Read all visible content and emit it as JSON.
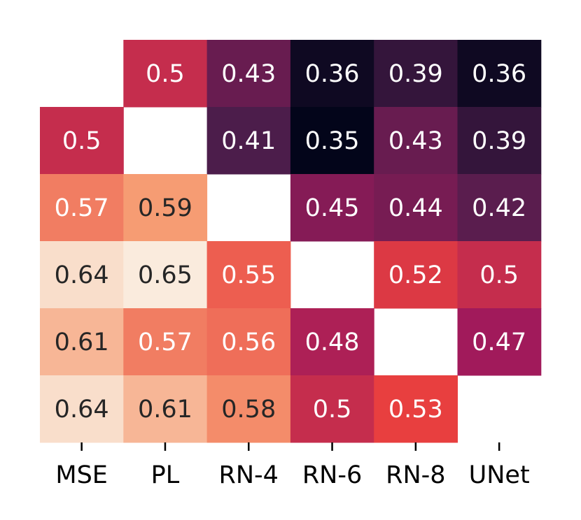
{
  "chart_data": {
    "type": "heatmap",
    "categories": [
      "MSE",
      "PL",
      "RN-4",
      "RN-6",
      "RN-8",
      "UNet"
    ],
    "values": [
      [
        null,
        0.5,
        0.43,
        0.36,
        0.39,
        0.36
      ],
      [
        0.5,
        null,
        0.41,
        0.35,
        0.43,
        0.39
      ],
      [
        0.57,
        0.59,
        null,
        0.45,
        0.44,
        0.42
      ],
      [
        0.64,
        0.65,
        0.55,
        null,
        0.52,
        0.5
      ],
      [
        0.61,
        0.57,
        0.56,
        0.48,
        null,
        0.47
      ],
      [
        0.64,
        0.61,
        0.58,
        0.5,
        0.53,
        null
      ]
    ],
    "colormap": "rocket"
  }
}
